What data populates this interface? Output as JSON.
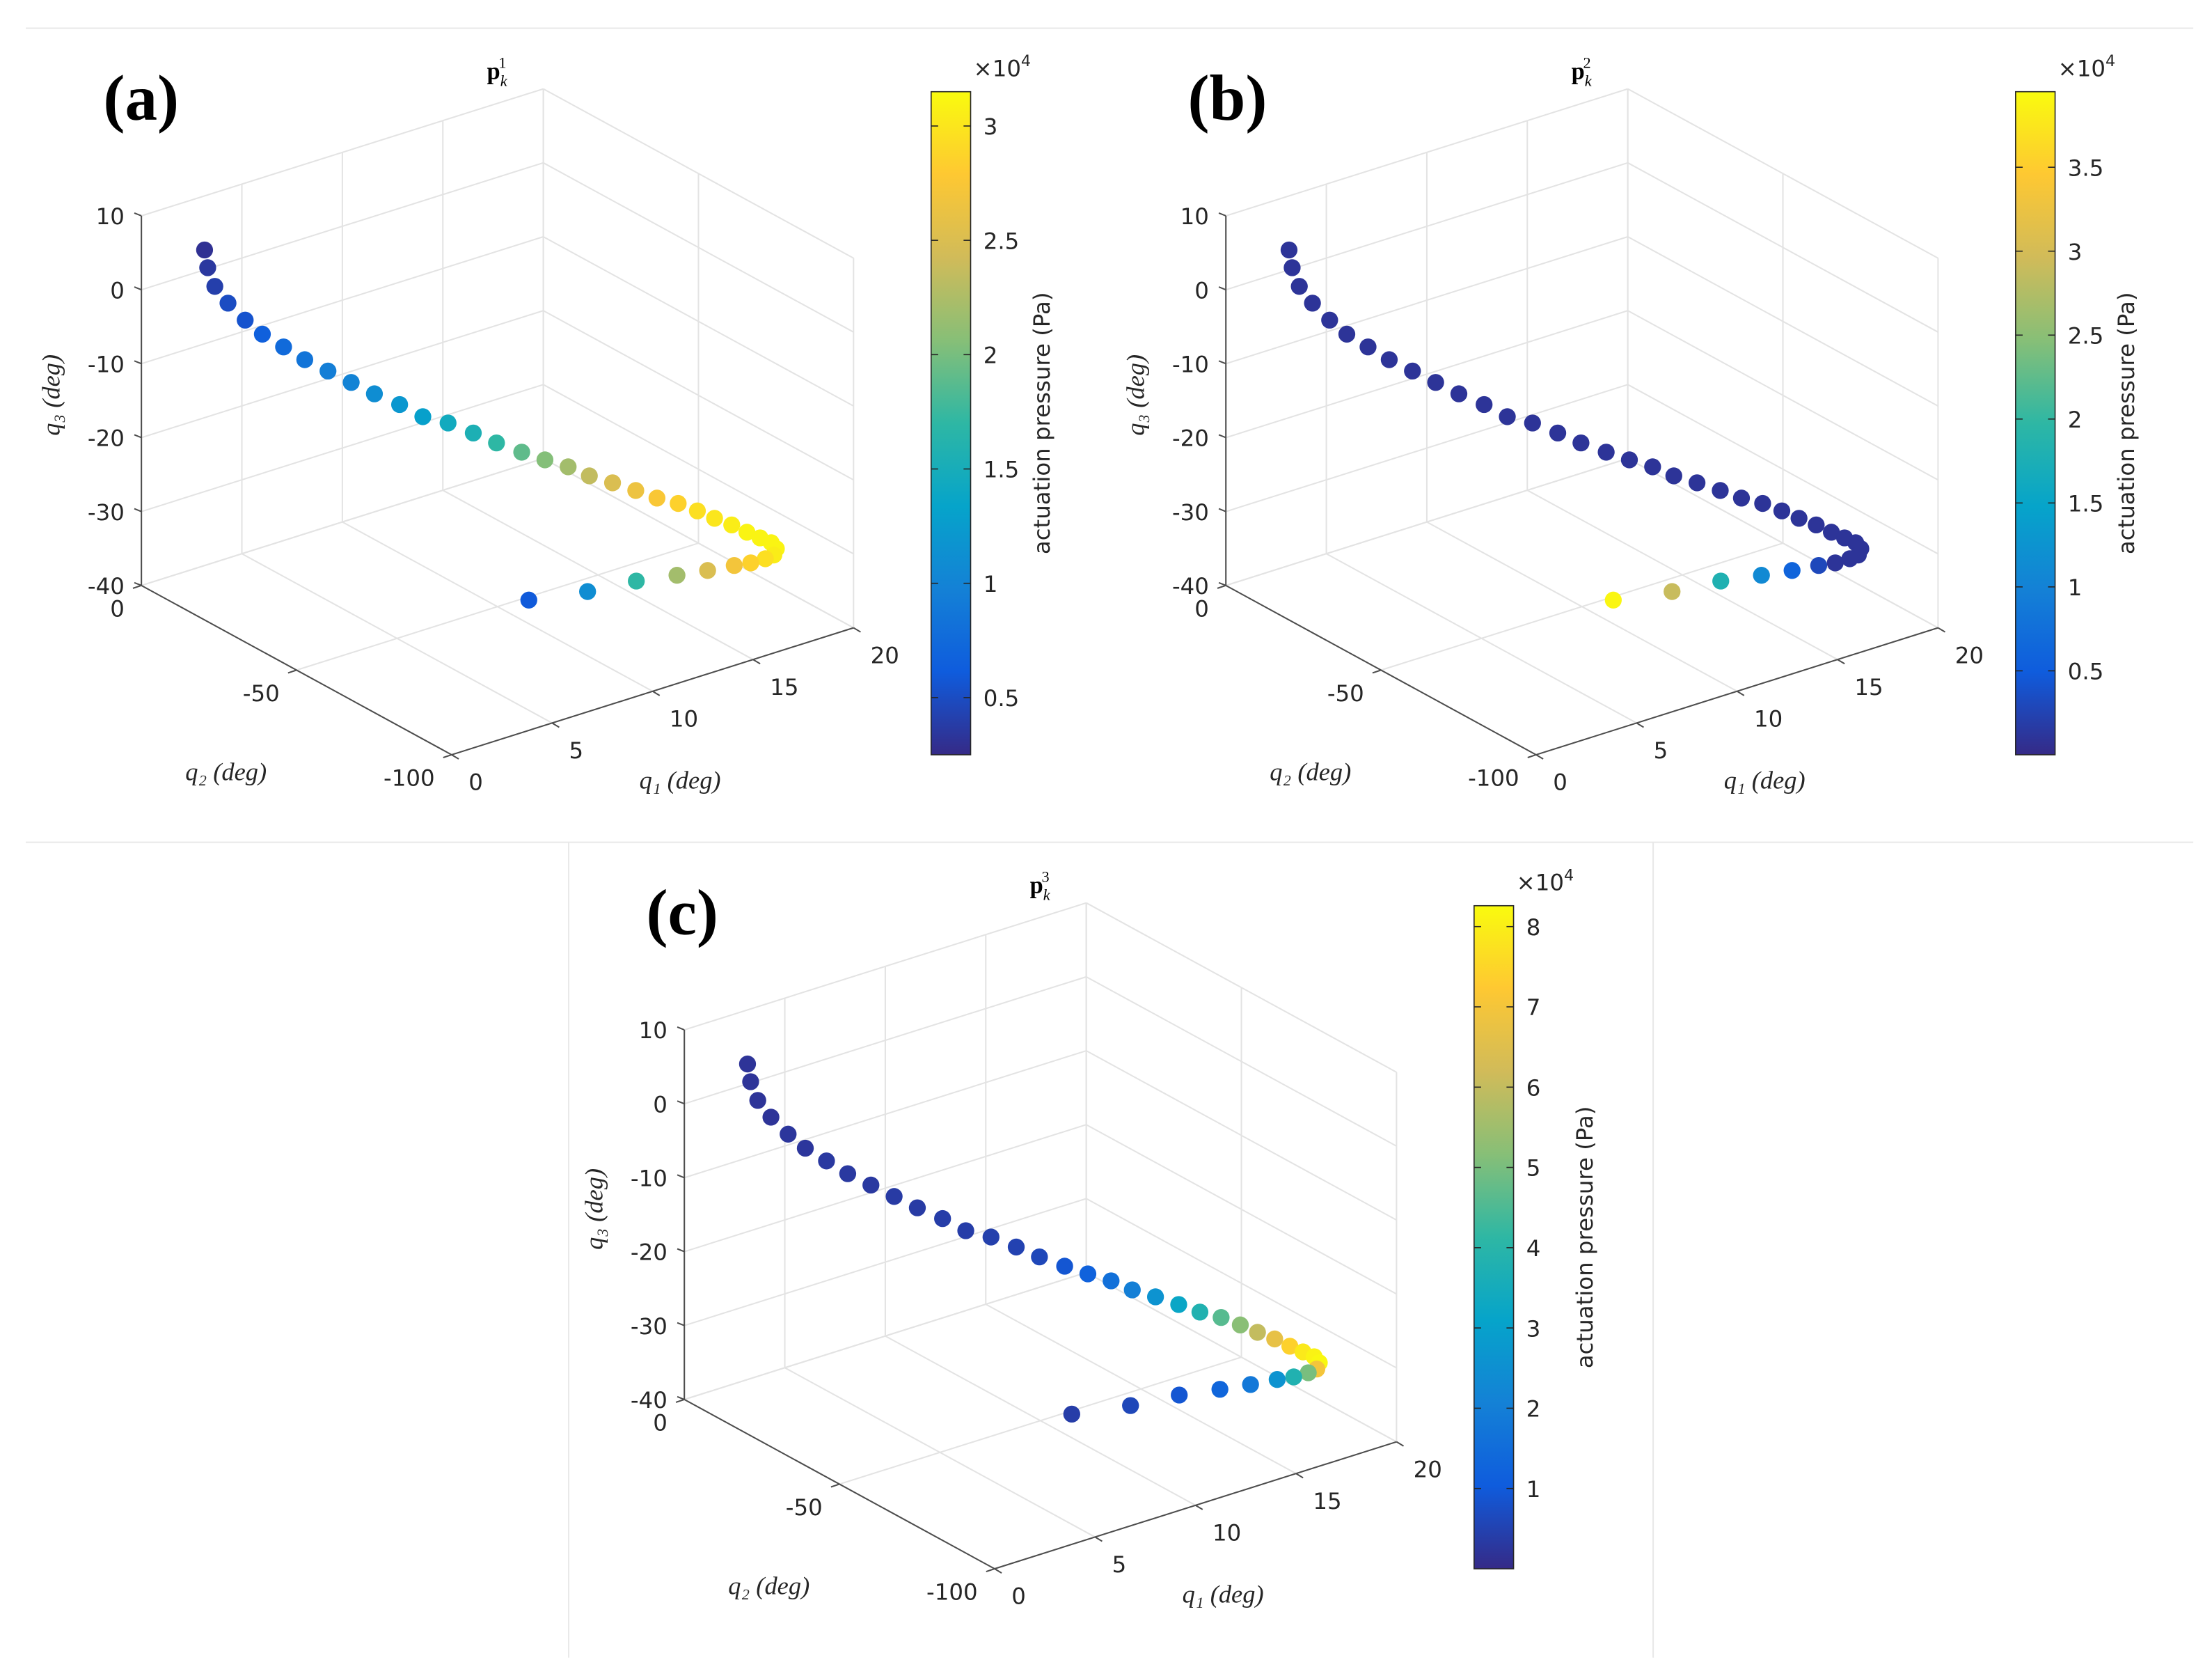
{
  "chart_data": [
    {
      "type": "scatter3d",
      "panel_label": "(a)",
      "title": [
        "p",
        "k",
        "1"
      ],
      "x_label": "q₁ (deg)",
      "y_label": "q₂ (deg)",
      "z_label": "q₃ (deg)",
      "xlim": [
        0,
        20
      ],
      "ylim": [
        -100,
        0
      ],
      "zlim": [
        -40,
        10
      ],
      "xticks": [
        0,
        5,
        10,
        15,
        20
      ],
      "yticks": [
        -100,
        -50,
        0
      ],
      "zticks": [
        -40,
        -30,
        -20,
        -10,
        0,
        10
      ],
      "grid": true,
      "x": [
        1.6,
        1.4,
        1.4,
        1.7,
        2.2,
        2.7,
        3.4,
        4.1,
        4.9,
        5.7,
        6.5,
        7.4,
        8.2,
        9.1,
        10.0,
        10.8,
        11.7,
        12.5,
        13.3,
        14.0,
        14.8,
        15.6,
        16.3,
        17.0,
        17.6,
        18.1,
        18.6,
        19.0,
        19.3,
        19.5,
        19.4,
        19.6,
        19.5,
        19.1,
        18.6,
        17.6,
        16.4,
        14.7,
        12.6,
        10.0
      ],
      "y": [
        -10,
        -12.3,
        -14.6,
        -16.9,
        -19.2,
        -21.5,
        -23.8,
        -26.1,
        -28.4,
        -30.7,
        -33,
        -35.3,
        -37.6,
        -39.9,
        -42.2,
        -44.5,
        -46.8,
        -49.1,
        -51.4,
        -53.7,
        -56,
        -58.3,
        -60.6,
        -62.9,
        -65.2,
        -67.5,
        -69.8,
        -72.1,
        -74.4,
        -76.7,
        -79,
        -76.9,
        -74.8,
        -72.7,
        -70.6,
        -68.5,
        -66.4,
        -64.3,
        -62.2,
        -60.1
      ],
      "z": [
        6.3,
        4.6,
        2.6,
        0.6,
        -1.6,
        -3.4,
        -5.2,
        -7.0,
        -8.7,
        -10.4,
        -12.1,
        -13.8,
        -15.6,
        -16.7,
        -18.3,
        -19.8,
        -21.3,
        -22.5,
        -23.6,
        -24.9,
        -26.0,
        -27.2,
        -28.3,
        -29.1,
        -30.1,
        -31.0,
        -31.8,
        -32.6,
        -33.1,
        -33.4,
        -33.6,
        -35.1,
        -36.0,
        -36.7,
        -37.1,
        -37.4,
        -37.5,
        -37.3,
        -37.4,
        -36.8
      ],
      "values": [
        0.3,
        0.35,
        0.4,
        0.5,
        0.55,
        0.65,
        0.75,
        0.85,
        0.95,
        1.0,
        1.1,
        1.2,
        1.3,
        1.45,
        1.55,
        1.7,
        1.9,
        2.05,
        2.2,
        2.35,
        2.5,
        2.65,
        2.75,
        2.85,
        2.95,
        3.0,
        3.05,
        3.1,
        3.1,
        3.1,
        3.1,
        3.05,
        2.95,
        2.85,
        2.7,
        2.5,
        2.2,
        1.7,
        1.1,
        0.6
      ],
      "colormap": "parula",
      "clim": [
        0.25,
        3.15
      ],
      "cticks": [
        0.5,
        1,
        1.5,
        2,
        2.5,
        3
      ],
      "colorbar_exponent": [
        "×10",
        "4"
      ],
      "colorbar_label": "actuation pressure (Pa)"
    },
    {
      "type": "scatter3d",
      "panel_label": "(b)",
      "title": [
        "p",
        "k",
        "2"
      ],
      "x_label": "q₁ (deg)",
      "y_label": "q₂ (deg)",
      "z_label": "q₃ (deg)",
      "xlim": [
        0,
        20
      ],
      "ylim": [
        -100,
        0
      ],
      "zlim": [
        -40,
        10
      ],
      "xticks": [
        0,
        5,
        10,
        15,
        20
      ],
      "yticks": [
        -100,
        -50,
        0
      ],
      "zticks": [
        -40,
        -30,
        -20,
        -10,
        0,
        10
      ],
      "grid": true,
      "x": [
        1.6,
        1.4,
        1.4,
        1.7,
        2.2,
        2.7,
        3.4,
        4.1,
        4.9,
        5.7,
        6.5,
        7.4,
        8.2,
        9.1,
        10.0,
        10.8,
        11.7,
        12.5,
        13.3,
        14.0,
        14.8,
        15.6,
        16.3,
        17.0,
        17.6,
        18.1,
        18.6,
        19.0,
        19.3,
        19.5,
        19.4,
        19.6,
        19.5,
        19.1,
        18.6,
        17.6,
        16.4,
        14.7,
        12.6,
        10.0
      ],
      "y": [
        -10,
        -12.3,
        -14.6,
        -16.9,
        -19.2,
        -21.5,
        -23.8,
        -26.1,
        -28.4,
        -30.7,
        -33,
        -35.3,
        -37.6,
        -39.9,
        -42.2,
        -44.5,
        -46.8,
        -49.1,
        -51.4,
        -53.7,
        -56,
        -58.3,
        -60.6,
        -62.9,
        -65.2,
        -67.5,
        -69.8,
        -72.1,
        -74.4,
        -76.7,
        -79,
        -76.9,
        -74.8,
        -72.7,
        -70.6,
        -68.5,
        -66.4,
        -64.3,
        -62.2,
        -60.1
      ],
      "z": [
        6.3,
        4.6,
        2.6,
        0.6,
        -1.6,
        -3.4,
        -5.2,
        -7.0,
        -8.7,
        -10.4,
        -12.1,
        -13.8,
        -15.6,
        -16.7,
        -18.3,
        -19.8,
        -21.3,
        -22.5,
        -23.6,
        -24.9,
        -26.0,
        -27.2,
        -28.3,
        -29.1,
        -30.1,
        -31.0,
        -31.8,
        -32.6,
        -33.1,
        -33.4,
        -33.6,
        -35.1,
        -36.0,
        -36.7,
        -37.1,
        -37.4,
        -37.5,
        -37.3,
        -37.4,
        -36.8
      ],
      "values": [
        0.1,
        0.1,
        0.1,
        0.1,
        0.1,
        0.1,
        0.1,
        0.1,
        0.1,
        0.1,
        0.1,
        0.1,
        0.1,
        0.1,
        0.1,
        0.1,
        0.1,
        0.1,
        0.1,
        0.1,
        0.1,
        0.1,
        0.1,
        0.1,
        0.1,
        0.1,
        0.1,
        0.1,
        0.1,
        0.1,
        0.1,
        0.1,
        0.1,
        0.1,
        0.3,
        0.6,
        1.1,
        1.8,
        2.9,
        3.9
      ],
      "colormap": "parula",
      "clim": [
        0,
        3.95
      ],
      "cticks": [
        0.5,
        1,
        1.5,
        2,
        2.5,
        3,
        3.5
      ],
      "colorbar_exponent": [
        "×10",
        "4"
      ],
      "colorbar_label": "actuation pressure (Pa)"
    },
    {
      "type": "scatter3d",
      "panel_label": "(c)",
      "title": [
        "p",
        "k",
        "3"
      ],
      "x_label": "q₁ (deg)",
      "y_label": "q₂ (deg)",
      "z_label": "q₃ (deg)",
      "xlim": [
        0,
        20
      ],
      "ylim": [
        -100,
        0
      ],
      "zlim": [
        -40,
        10
      ],
      "xticks": [
        0,
        5,
        10,
        15,
        20
      ],
      "yticks": [
        -100,
        -50,
        0
      ],
      "zticks": [
        -40,
        -30,
        -20,
        -10,
        0,
        10
      ],
      "grid": true,
      "x": [
        1.6,
        1.4,
        1.4,
        1.7,
        2.2,
        2.7,
        3.4,
        4.1,
        4.9,
        5.7,
        6.5,
        7.4,
        8.2,
        9.1,
        10.0,
        10.8,
        11.7,
        12.5,
        13.3,
        14.0,
        14.8,
        15.6,
        16.3,
        17.0,
        17.6,
        18.1,
        18.6,
        19.0,
        19.3,
        19.5,
        19.4,
        19.6,
        19.5,
        19.1,
        18.6,
        17.6,
        16.4,
        14.7,
        12.6,
        10.0
      ],
      "y": [
        -10,
        -12.3,
        -14.6,
        -16.9,
        -19.2,
        -21.5,
        -23.8,
        -26.1,
        -28.4,
        -30.7,
        -33,
        -35.3,
        -37.6,
        -39.9,
        -42.2,
        -44.5,
        -46.8,
        -49.1,
        -51.4,
        -53.7,
        -56,
        -58.3,
        -60.6,
        -62.9,
        -65.2,
        -67.5,
        -69.8,
        -72.1,
        -74.4,
        -76.7,
        -79,
        -76.9,
        -74.8,
        -72.7,
        -70.6,
        -68.5,
        -66.4,
        -64.3,
        -62.2,
        -60.1
      ],
      "z": [
        6.3,
        4.6,
        2.6,
        0.6,
        -1.6,
        -3.4,
        -5.2,
        -7.0,
        -8.7,
        -10.4,
        -12.1,
        -13.8,
        -15.6,
        -16.7,
        -18.3,
        -19.8,
        -21.3,
        -22.5,
        -23.6,
        -24.9,
        -26.0,
        -27.2,
        -28.3,
        -29.1,
        -30.1,
        -31.0,
        -31.8,
        -32.6,
        -33.1,
        -33.4,
        -33.6,
        -35.1,
        -36.0,
        -36.7,
        -37.1,
        -37.4,
        -37.5,
        -37.3,
        -37.4,
        -36.8
      ],
      "values": [
        0.2,
        0.2,
        0.2,
        0.2,
        0.25,
        0.25,
        0.3,
        0.3,
        0.3,
        0.35,
        0.35,
        0.4,
        0.4,
        0.45,
        0.5,
        0.6,
        0.9,
        1.2,
        1.6,
        2.0,
        2.6,
        3.2,
        3.8,
        4.6,
        5.2,
        6.0,
        6.7,
        7.4,
        7.9,
        8.1,
        8.2,
        7.0,
        5.0,
        3.8,
        2.6,
        1.8,
        1.3,
        0.9,
        0.6,
        0.4
      ],
      "colormap": "parula",
      "clim": [
        0,
        8.26
      ],
      "cticks": [
        1,
        2,
        3,
        4,
        5,
        6,
        7,
        8
      ],
      "colorbar_exponent": [
        "×10",
        "4"
      ],
      "colorbar_label": "actuation pressure (Pa)"
    }
  ]
}
